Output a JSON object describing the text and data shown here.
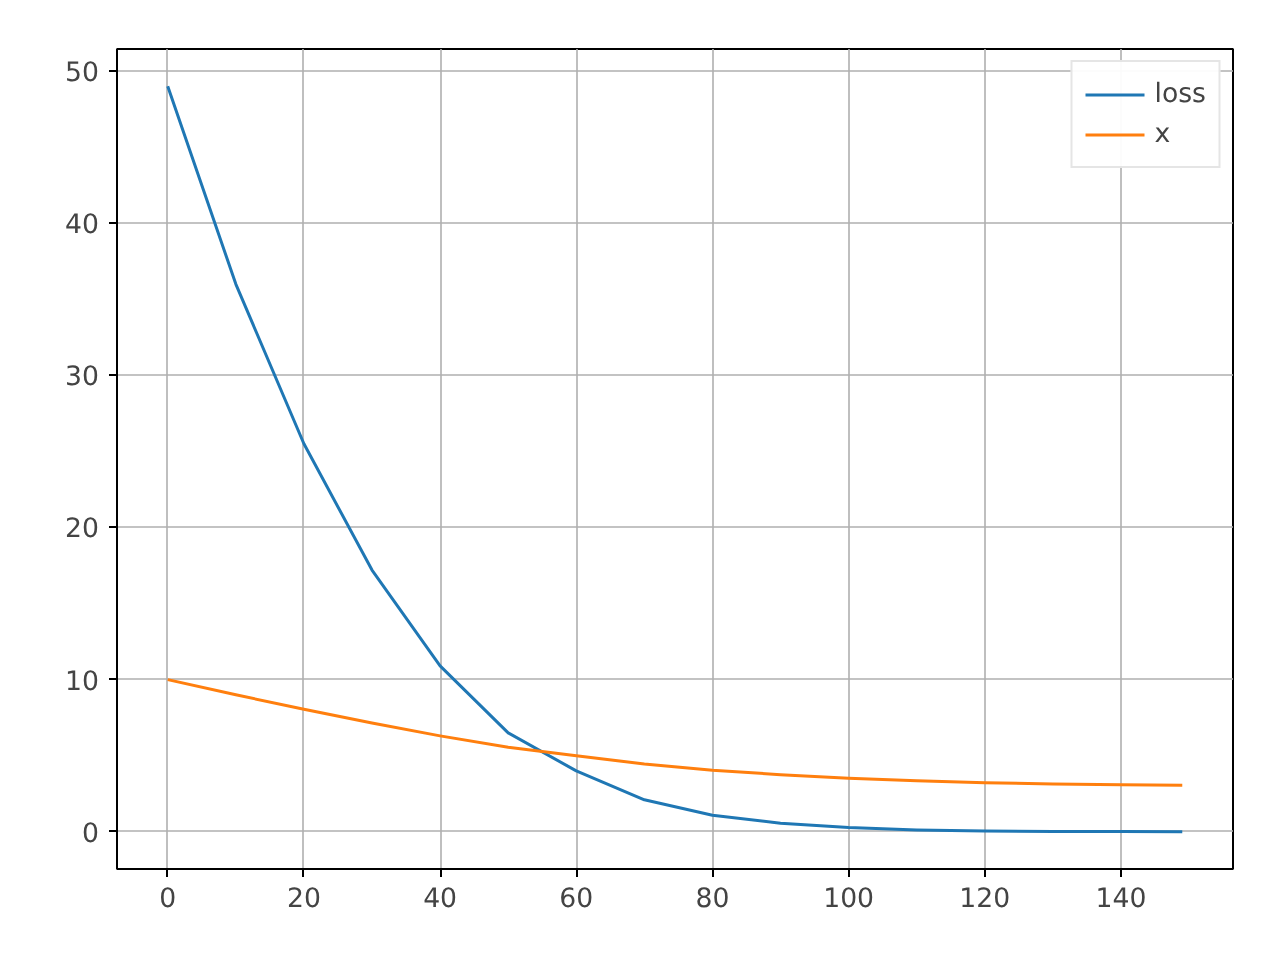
{
  "chart_data": {
    "type": "line",
    "x": [
      0,
      10,
      20,
      30,
      40,
      50,
      60,
      70,
      80,
      90,
      100,
      110,
      120,
      130,
      140,
      149
    ],
    "series": [
      {
        "name": "loss",
        "color": "#1f77b4",
        "values": [
          49,
          36,
          25.5,
          17.2,
          10.9,
          6.5,
          4.0,
          2.1,
          1.08,
          0.56,
          0.27,
          0.12,
          0.05,
          0.02,
          0.01,
          0.0
        ]
      },
      {
        "name": "x",
        "color": "#ff7f0e",
        "values": [
          10,
          9.0,
          8.05,
          7.15,
          6.3,
          5.55,
          5.0,
          4.45,
          4.04,
          3.75,
          3.52,
          3.35,
          3.22,
          3.14,
          3.09,
          3.05
        ]
      }
    ],
    "xlim": [
      -7.45,
      156.45
    ],
    "ylim": [
      -2.45,
      51.45
    ],
    "xticks": [
      0,
      20,
      40,
      60,
      80,
      100,
      120,
      140
    ],
    "yticks": [
      0,
      10,
      20,
      30,
      40,
      50
    ],
    "grid": true,
    "legend": "top right",
    "marker": "none",
    "line_style": "solid"
  }
}
